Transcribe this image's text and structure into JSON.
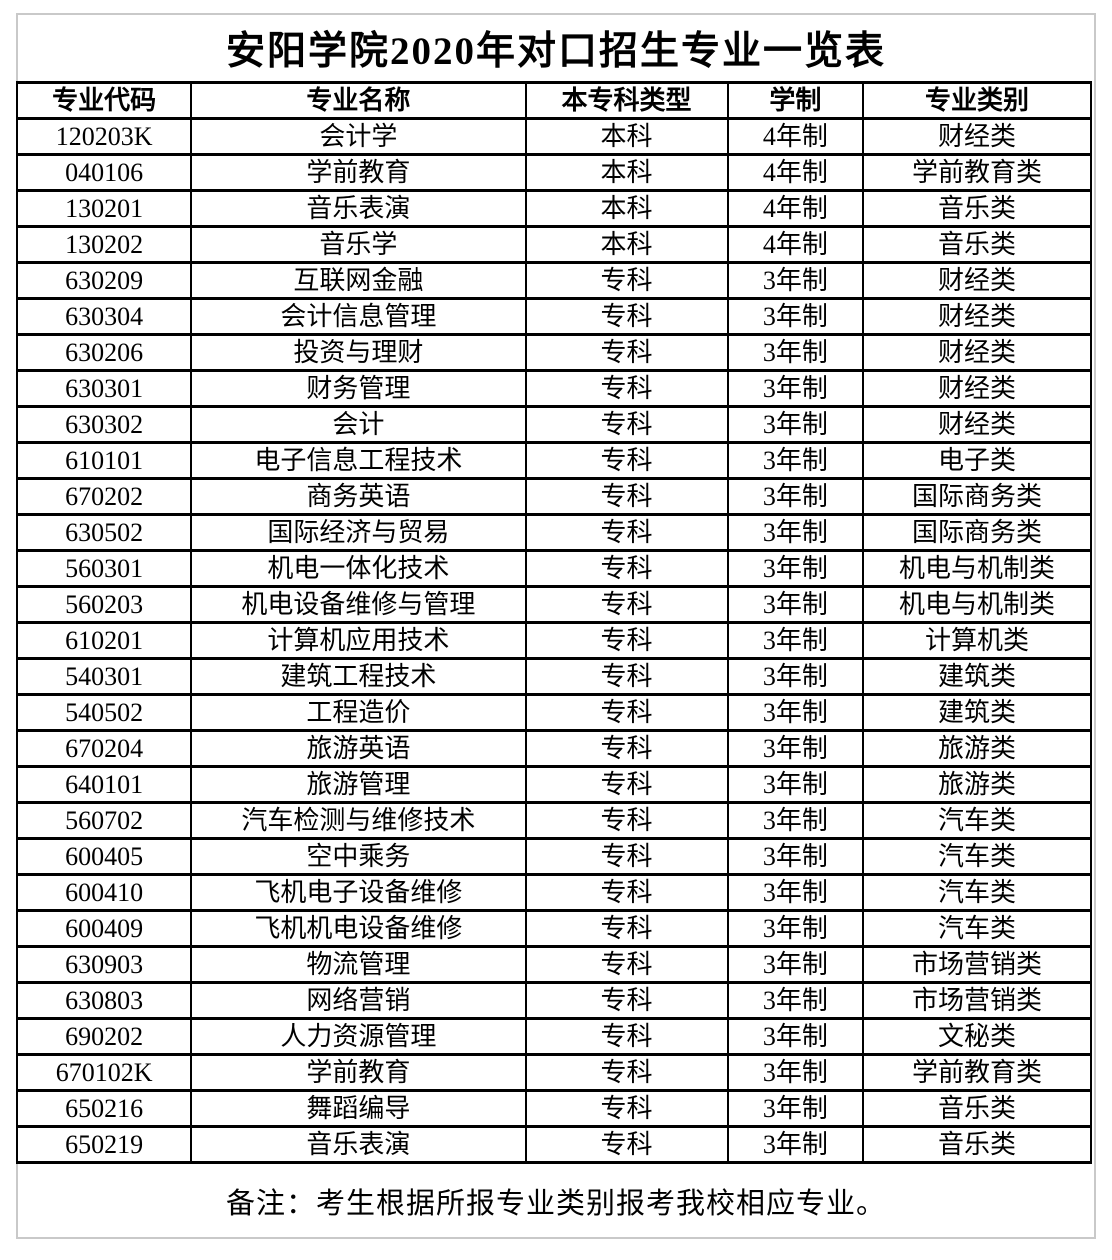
{
  "page": {
    "title": "安阳学院2020年对口招生专业一览表",
    "note": "备注：考生根据所报专业类别报考我校相应专业。"
  },
  "table": {
    "headers": [
      "专业代码",
      "专业名称",
      "本专科类型",
      "学制",
      "专业类别"
    ],
    "rows": [
      {
        "code": "120203K",
        "name": "会计学",
        "type": "本科",
        "duration": "4年制",
        "category": "财经类"
      },
      {
        "code": "040106",
        "name": "学前教育",
        "type": "本科",
        "duration": "4年制",
        "category": "学前教育类"
      },
      {
        "code": "130201",
        "name": "音乐表演",
        "type": "本科",
        "duration": "4年制",
        "category": "音乐类"
      },
      {
        "code": "130202",
        "name": "音乐学",
        "type": "本科",
        "duration": "4年制",
        "category": "音乐类"
      },
      {
        "code": "630209",
        "name": "互联网金融",
        "type": "专科",
        "duration": "3年制",
        "category": "财经类"
      },
      {
        "code": "630304",
        "name": "会计信息管理",
        "type": "专科",
        "duration": "3年制",
        "category": "财经类"
      },
      {
        "code": "630206",
        "name": "投资与理财",
        "type": "专科",
        "duration": "3年制",
        "category": "财经类"
      },
      {
        "code": "630301",
        "name": "财务管理",
        "type": "专科",
        "duration": "3年制",
        "category": "财经类"
      },
      {
        "code": "630302",
        "name": "会计",
        "type": "专科",
        "duration": "3年制",
        "category": "财经类"
      },
      {
        "code": "610101",
        "name": "电子信息工程技术",
        "type": "专科",
        "duration": "3年制",
        "category": "电子类"
      },
      {
        "code": "670202",
        "name": "商务英语",
        "type": "专科",
        "duration": "3年制",
        "category": "国际商务类"
      },
      {
        "code": "630502",
        "name": "国际经济与贸易",
        "type": "专科",
        "duration": "3年制",
        "category": "国际商务类"
      },
      {
        "code": "560301",
        "name": "机电一体化技术",
        "type": "专科",
        "duration": "3年制",
        "category": "机电与机制类"
      },
      {
        "code": "560203",
        "name": "机电设备维修与管理",
        "type": "专科",
        "duration": "3年制",
        "category": "机电与机制类"
      },
      {
        "code": "610201",
        "name": "计算机应用技术",
        "type": "专科",
        "duration": "3年制",
        "category": "计算机类"
      },
      {
        "code": "540301",
        "name": "建筑工程技术",
        "type": "专科",
        "duration": "3年制",
        "category": "建筑类"
      },
      {
        "code": "540502",
        "name": "工程造价",
        "type": "专科",
        "duration": "3年制",
        "category": "建筑类"
      },
      {
        "code": "670204",
        "name": "旅游英语",
        "type": "专科",
        "duration": "3年制",
        "category": "旅游类"
      },
      {
        "code": "640101",
        "name": "旅游管理",
        "type": "专科",
        "duration": "3年制",
        "category": "旅游类"
      },
      {
        "code": "560702",
        "name": "汽车检测与维修技术",
        "type": "专科",
        "duration": "3年制",
        "category": "汽车类"
      },
      {
        "code": "600405",
        "name": "空中乘务",
        "type": "专科",
        "duration": "3年制",
        "category": "汽车类"
      },
      {
        "code": "600410",
        "name": "飞机电子设备维修",
        "type": "专科",
        "duration": "3年制",
        "category": "汽车类"
      },
      {
        "code": "600409",
        "name": "飞机机电设备维修",
        "type": "专科",
        "duration": "3年制",
        "category": "汽车类"
      },
      {
        "code": "630903",
        "name": "物流管理",
        "type": "专科",
        "duration": "3年制",
        "category": "市场营销类"
      },
      {
        "code": "630803",
        "name": "网络营销",
        "type": "专科",
        "duration": "3年制",
        "category": "市场营销类"
      },
      {
        "code": "690202",
        "name": "人力资源管理",
        "type": "专科",
        "duration": "3年制",
        "category": "文秘类"
      },
      {
        "code": "670102K",
        "name": "学前教育",
        "type": "专科",
        "duration": "3年制",
        "category": "学前教育类"
      },
      {
        "code": "650216",
        "name": "舞蹈编导",
        "type": "专科",
        "duration": "3年制",
        "category": "音乐类"
      },
      {
        "code": "650219",
        "name": "音乐表演",
        "type": "专科",
        "duration": "3年制",
        "category": "音乐类"
      }
    ]
  }
}
